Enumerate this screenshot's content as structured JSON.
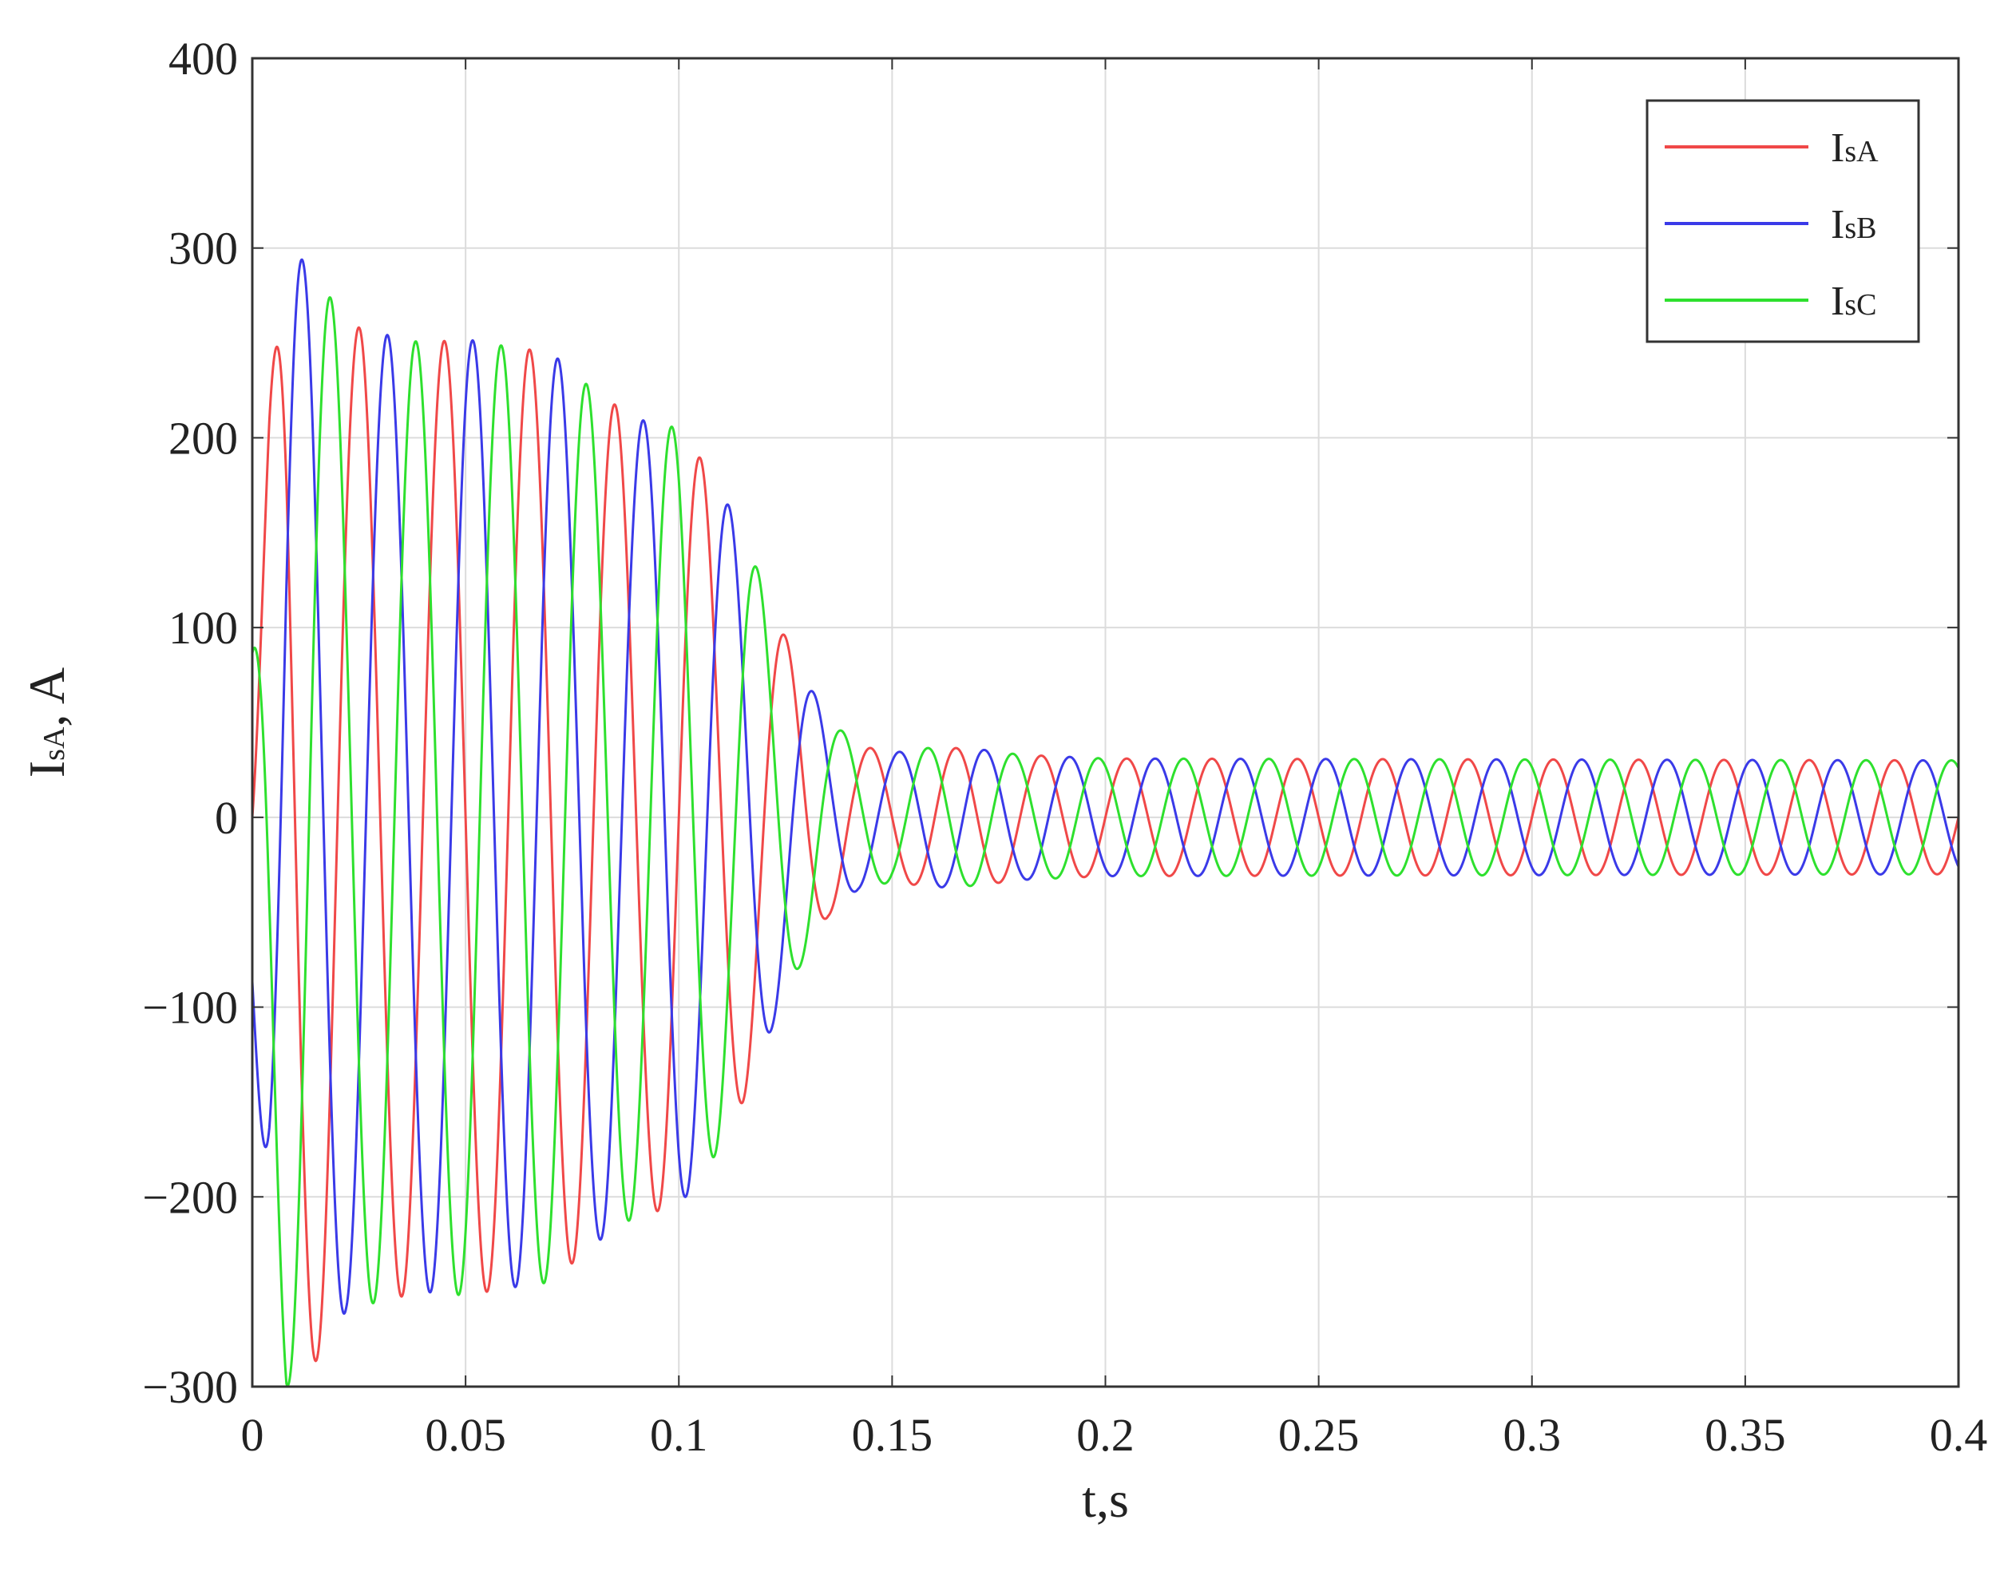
{
  "chart_data": {
    "type": "line",
    "title": "",
    "xlabel": "t,s",
    "ylabel": {
      "main": "I",
      "sub": "sA",
      "suffix": ", A"
    },
    "xlim": [
      0,
      0.4
    ],
    "ylim": [
      -300,
      400
    ],
    "x_ticks": [
      0,
      0.05,
      0.1,
      0.15,
      0.2,
      0.25,
      0.3,
      0.35,
      0.4
    ],
    "x_tick_labels": [
      "0",
      "0.05",
      "0.1",
      "0.15",
      "0.2",
      "0.25",
      "0.3",
      "0.35",
      "0.4"
    ],
    "y_ticks": [
      -300,
      -200,
      -100,
      0,
      100,
      200,
      300,
      400
    ],
    "y_tick_labels": [
      "−300",
      "−200",
      "−100",
      "0",
      "100",
      "200",
      "300",
      "400"
    ],
    "grid": true,
    "legend_position": "top-right",
    "frequency_hz": 50,
    "steady_state_amplitude": 30,
    "amplitude_envelope": {
      "t": [
        0,
        0.004,
        0.008,
        0.014,
        0.022,
        0.03,
        0.04,
        0.05,
        0.06,
        0.07,
        0.08,
        0.09,
        0.1,
        0.108,
        0.115,
        0.122,
        0.128,
        0.135,
        0.142,
        0.15,
        0.16,
        0.17,
        0.18,
        0.2,
        0.4
      ],
      "values": [
        100,
        220,
        300,
        290,
        260,
        255,
        250,
        252,
        248,
        245,
        225,
        210,
        205,
        180,
        150,
        110,
        80,
        52,
        38,
        34,
        37,
        36,
        33,
        31,
        30
      ]
    },
    "series": [
      {
        "name": {
          "main": "I",
          "sub": "sA"
        },
        "color": "#f04848",
        "phase_deg": 0
      },
      {
        "name": {
          "main": "I",
          "sub": "sB"
        },
        "color": "#3a3ae8",
        "phase_deg": -120
      },
      {
        "name": {
          "main": "I",
          "sub": "sC"
        },
        "color": "#2ee02e",
        "phase_deg": 120
      }
    ]
  }
}
